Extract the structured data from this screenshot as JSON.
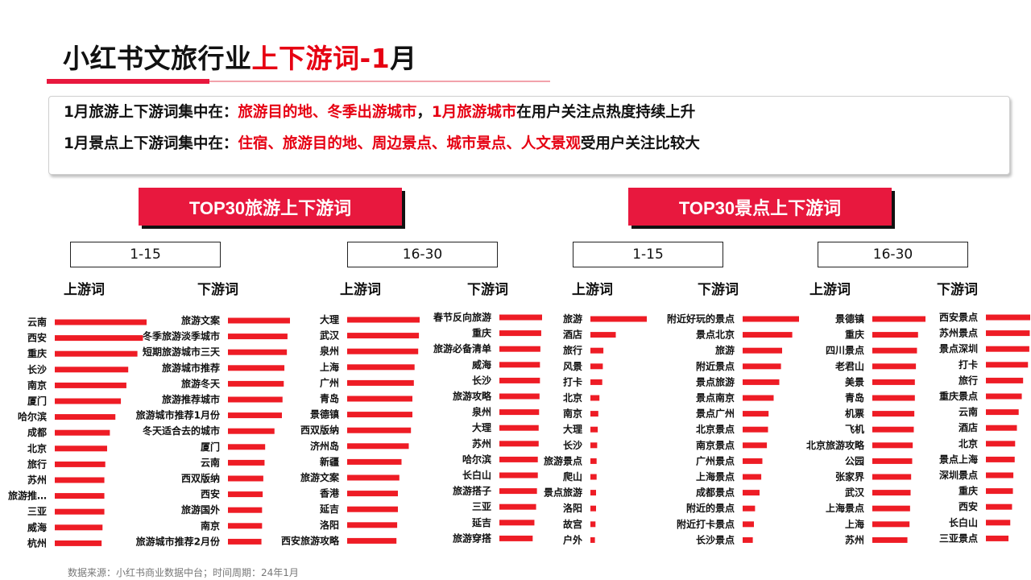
{
  "header": {
    "title_prefix": "小红书文旅行业",
    "title_highlight": "上下游词-1",
    "title_suffix": "月"
  },
  "summary": {
    "line1": [
      {
        "text": "1月旅游上下游词集中在：",
        "red": false
      },
      {
        "text": "旅游目的地、冬季出游城市",
        "red": true
      },
      {
        "text": "，",
        "red": false
      },
      {
        "text": "1月旅游城市",
        "red": true
      },
      {
        "text": "在用户关注点热度持续上升",
        "red": false
      }
    ],
    "line2": [
      {
        "text": "1月景点上下游词集中在：",
        "red": false
      },
      {
        "text": "住宿、旅游目的地、周边景点、城市景点、人文景观",
        "red": true
      },
      {
        "text": "受用户关注比较大",
        "red": false
      }
    ]
  },
  "sections": {
    "travel_banner": "TOP30旅游上下游词",
    "scenic_banner": "TOP30景点上下游词"
  },
  "ranges": [
    "1-15",
    "16-30",
    "1-15",
    "16-30"
  ],
  "column_headers": [
    "上游词",
    "下游词",
    "上游词",
    "下游词",
    "上游词",
    "下游词",
    "上游词",
    "下游词"
  ],
  "chart_data": [
    {
      "type": "bar",
      "orientation": "horizontal",
      "group": "旅游",
      "range": "1-15",
      "side": "上游词",
      "categories": [
        "云南",
        "西安",
        "重庆",
        "长沙",
        "南京",
        "厦门",
        "哈尔滨",
        "成都",
        "北京",
        "旅行",
        "苏州",
        "旅游推…",
        "三亚",
        "威海",
        "杭州"
      ],
      "values": [
        100,
        96,
        90,
        80,
        78,
        72,
        66,
        60,
        57,
        55,
        54,
        54,
        54,
        52,
        51
      ]
    },
    {
      "type": "bar",
      "orientation": "horizontal",
      "group": "旅游",
      "range": "1-15",
      "side": "下游词",
      "categories": [
        "旅游文案",
        "冬季旅游淡季城市",
        "短期旅游城市三天",
        "旅游城市推荐",
        "旅游冬天",
        "旅游推荐城市",
        "旅游城市推荐1月份",
        "冬天适合去的城市",
        "厦门",
        "云南",
        "西双版纳",
        "西安",
        "旅游国外",
        "南京",
        "旅游城市推荐2月份"
      ],
      "values": [
        100,
        96,
        95,
        91,
        90,
        88,
        87,
        75,
        60,
        59,
        57,
        56,
        55,
        55,
        54
      ]
    },
    {
      "type": "bar",
      "orientation": "horizontal",
      "group": "旅游",
      "range": "16-30",
      "side": "上游词",
      "categories": [
        "大理",
        "武汉",
        "泉州",
        "上海",
        "广州",
        "青岛",
        "景德镇",
        "西双版纳",
        "济州岛",
        "新疆",
        "旅游文案",
        "香港",
        "延吉",
        "洛阳",
        "西安旅游攻略"
      ],
      "values": [
        100,
        99,
        98,
        93,
        92,
        90,
        90,
        88,
        85,
        75,
        72,
        70,
        70,
        69,
        68
      ]
    },
    {
      "type": "bar",
      "orientation": "horizontal",
      "group": "旅游",
      "range": "16-30",
      "side": "下游词",
      "categories": [
        "春节反向旅游",
        "重庆",
        "旅游必备清单",
        "威海",
        "长沙",
        "旅游攻略",
        "泉州",
        "大理",
        "苏州",
        "哈尔滨",
        "长白山",
        "旅游搭子",
        "三亚",
        "延吉",
        "旅游穿搭"
      ],
      "values": [
        100,
        98,
        96,
        95,
        95,
        94,
        93,
        92,
        92,
        90,
        90,
        88,
        86,
        82,
        78
      ]
    },
    {
      "type": "bar",
      "orientation": "horizontal",
      "group": "景点",
      "range": "1-15",
      "side": "上游词",
      "categories": [
        "旅游",
        "酒店",
        "旅行",
        "风景",
        "打卡",
        "北京",
        "南京",
        "大理",
        "长沙",
        "旅游景点",
        "爬山",
        "景点旅游",
        "洛阳",
        "故宫",
        "户外"
      ],
      "values": [
        100,
        45,
        23,
        22,
        21,
        16,
        14,
        13,
        12,
        11,
        11,
        10,
        10,
        9,
        8
      ]
    },
    {
      "type": "bar",
      "orientation": "horizontal",
      "group": "景点",
      "range": "1-15",
      "side": "下游词",
      "categories": [
        "附近好玩的景点",
        "景点北京",
        "旅游",
        "附近景点",
        "景点旅游",
        "景点南京",
        "景点广州",
        "北京景点",
        "南京景点",
        "广州景点",
        "上海景点",
        "成都景点",
        "附近的景点",
        "附近打卡景点",
        "长沙景点"
      ],
      "values": [
        100,
        88,
        70,
        68,
        65,
        55,
        46,
        45,
        43,
        35,
        33,
        30,
        22,
        20,
        18
      ]
    },
    {
      "type": "bar",
      "orientation": "horizontal",
      "group": "景点",
      "range": "16-30",
      "side": "上游词",
      "categories": [
        "景德镇",
        "重庆",
        "四川景点",
        "老君山",
        "美景",
        "青岛",
        "机票",
        "飞机",
        "北京旅游攻略",
        "公园",
        "张家界",
        "武汉",
        "上海景点",
        "上海",
        "苏州"
      ],
      "values": [
        100,
        86,
        84,
        82,
        80,
        80,
        79,
        78,
        76,
        75,
        73,
        72,
        71,
        70,
        66
      ]
    },
    {
      "type": "bar",
      "orientation": "horizontal",
      "group": "景点",
      "range": "16-30",
      "side": "下游词",
      "categories": [
        "西安景点",
        "苏州景点",
        "景点深圳",
        "打卡",
        "旅行",
        "重庆景点",
        "云南",
        "酒店",
        "北京",
        "景点上海",
        "深圳景点",
        "重庆",
        "西安",
        "长白山",
        "三亚景点"
      ],
      "values": [
        100,
        99,
        98,
        95,
        84,
        81,
        74,
        70,
        66,
        65,
        62,
        61,
        59,
        55,
        51
      ]
    }
  ],
  "colors": {
    "accent": "#e60012",
    "bar": "#ee1c25",
    "banner": "#e8183e"
  },
  "footer": {
    "source": "数据来源：小红书商业数据中台；时间周期：24年1月"
  }
}
